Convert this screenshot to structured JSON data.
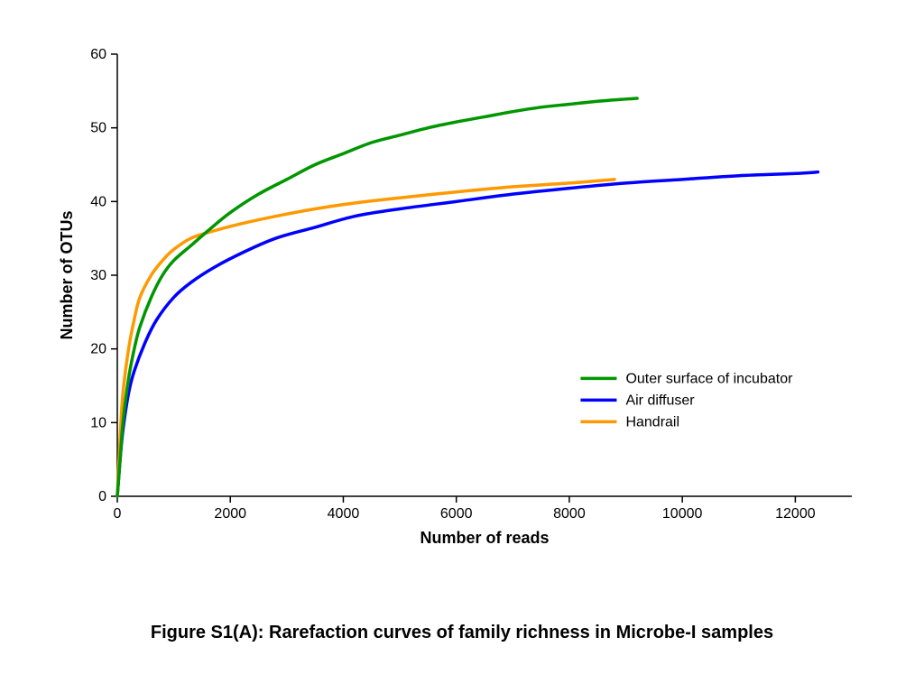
{
  "caption": "Figure S1(A): Rarefaction curves of family richness in Microbe-I samples",
  "chart": {
    "type": "line",
    "background_color": "#ffffff",
    "xlabel": "Number of reads",
    "ylabel": "Number of OTUs",
    "label_fontsize": 18,
    "tick_fontsize": 16,
    "xlim": [
      0,
      13000
    ],
    "ylim": [
      0,
      60
    ],
    "xticks": [
      0,
      2000,
      4000,
      6000,
      8000,
      10000,
      12000
    ],
    "yticks": [
      0,
      10,
      20,
      30,
      40,
      50,
      60
    ],
    "axis_color": "#000000",
    "line_width": 3.5,
    "legend": {
      "position": "lower-right-inside",
      "fontsize": 16,
      "line_length": 40
    },
    "series": [
      {
        "name": "Outer surface of incubator",
        "color": "#009600",
        "data": [
          [
            0,
            0
          ],
          [
            50,
            5
          ],
          [
            100,
            10
          ],
          [
            200,
            16
          ],
          [
            300,
            20
          ],
          [
            400,
            23
          ],
          [
            600,
            27
          ],
          [
            800,
            30
          ],
          [
            1000,
            32
          ],
          [
            1300,
            34
          ],
          [
            1600,
            36
          ],
          [
            2000,
            38.5
          ],
          [
            2500,
            41
          ],
          [
            3000,
            43
          ],
          [
            3500,
            45
          ],
          [
            4000,
            46.5
          ],
          [
            4500,
            48
          ],
          [
            5000,
            49
          ],
          [
            5500,
            50
          ],
          [
            6000,
            50.8
          ],
          [
            6500,
            51.5
          ],
          [
            7000,
            52.2
          ],
          [
            7500,
            52.8
          ],
          [
            8000,
            53.2
          ],
          [
            8500,
            53.6
          ],
          [
            9000,
            53.9
          ],
          [
            9200,
            54
          ]
        ]
      },
      {
        "name": "Air diffuser",
        "color": "#0000ff",
        "data": [
          [
            0,
            0
          ],
          [
            50,
            5
          ],
          [
            100,
            9
          ],
          [
            200,
            14
          ],
          [
            300,
            17
          ],
          [
            500,
            21
          ],
          [
            700,
            24
          ],
          [
            1000,
            27
          ],
          [
            1300,
            29
          ],
          [
            1700,
            31
          ],
          [
            2200,
            33
          ],
          [
            2800,
            35
          ],
          [
            3500,
            36.5
          ],
          [
            4200,
            38
          ],
          [
            5000,
            39
          ],
          [
            6000,
            40
          ],
          [
            7000,
            41
          ],
          [
            8000,
            41.8
          ],
          [
            9000,
            42.5
          ],
          [
            10000,
            43
          ],
          [
            11000,
            43.5
          ],
          [
            12000,
            43.8
          ],
          [
            12400,
            44
          ]
        ]
      },
      {
        "name": "Handrail",
        "color": "#ff9900",
        "data": [
          [
            0,
            0
          ],
          [
            50,
            8
          ],
          [
            100,
            14
          ],
          [
            200,
            20
          ],
          [
            300,
            24
          ],
          [
            400,
            27
          ],
          [
            600,
            30
          ],
          [
            800,
            32
          ],
          [
            1000,
            33.5
          ],
          [
            1300,
            35
          ],
          [
            1700,
            36
          ],
          [
            2200,
            37
          ],
          [
            2800,
            38
          ],
          [
            3500,
            39
          ],
          [
            4200,
            39.8
          ],
          [
            5000,
            40.5
          ],
          [
            6000,
            41.3
          ],
          [
            7000,
            42
          ],
          [
            8000,
            42.5
          ],
          [
            8800,
            43
          ]
        ]
      }
    ]
  }
}
